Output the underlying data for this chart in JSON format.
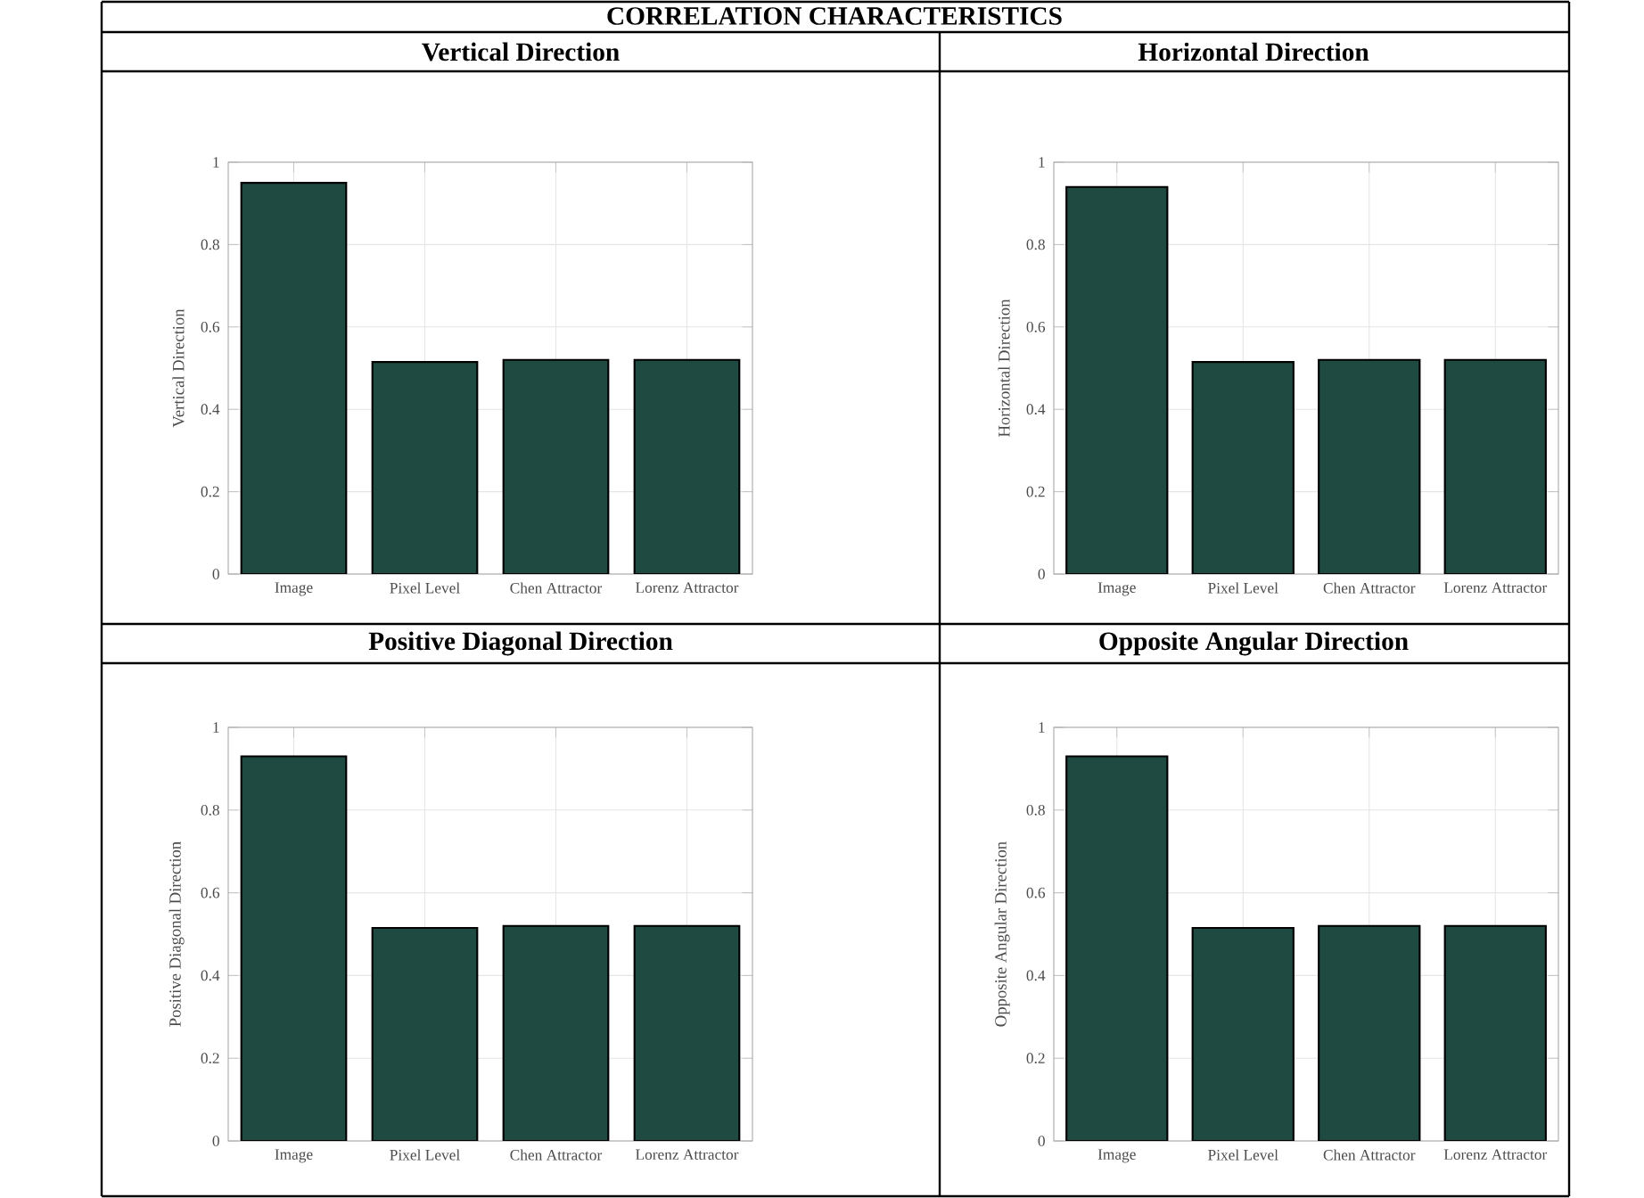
{
  "chart_data": [
    {
      "type": "bar",
      "title": "Vertical Direction",
      "ylabel": "Vertical Direction",
      "annotations": [
        "CORRELATION CHARACTERISTICS"
      ],
      "categories": [
        "Image",
        "Pixel Level",
        "Chen Attractor",
        "Lorenz Attractor"
      ],
      "values": [
        0.95,
        0.515,
        0.52,
        0.52
      ],
      "color": "#1f4a42",
      "ylim": [
        0,
        1
      ],
      "yticks": [
        0,
        0.2,
        0.4,
        0.6,
        0.8,
        1
      ],
      "grid": true
    },
    {
      "type": "bar",
      "title": "Horizontal Direction",
      "ylabel": "Horizontal Direction",
      "categories": [
        "Image",
        "Pixel Level",
        "Chen Attractor",
        "Lorenz Attractor"
      ],
      "values": [
        0.94,
        0.515,
        0.52,
        0.52
      ],
      "color": "#1f4a42",
      "ylim": [
        0,
        1
      ],
      "yticks": [
        0,
        0.2,
        0.4,
        0.6,
        0.8,
        1
      ],
      "grid": true
    },
    {
      "type": "bar",
      "title": "Positive Diagonal Direction",
      "ylabel": "Positive Diagonal Direction",
      "categories": [
        "Image",
        "Pixel Level",
        "Chen Attractor",
        "Lorenz Attractor"
      ],
      "values": [
        0.93,
        0.515,
        0.52,
        0.52
      ],
      "color": "#1f4a42",
      "ylim": [
        0,
        1
      ],
      "yticks": [
        0,
        0.2,
        0.4,
        0.6,
        0.8,
        1
      ],
      "grid": true
    },
    {
      "type": "bar",
      "title": "Opposite Angular Direction",
      "ylabel": "Opposite Angular Direction",
      "categories": [
        "Image",
        "Pixel Level",
        "Chen Attractor",
        "Lorenz Attractor"
      ],
      "values": [
        0.93,
        0.515,
        0.52,
        0.52
      ],
      "color": "#1f4a42",
      "ylim": [
        0,
        1
      ],
      "yticks": [
        0,
        0.2,
        0.4,
        0.6,
        0.8,
        1
      ],
      "grid": true
    }
  ]
}
